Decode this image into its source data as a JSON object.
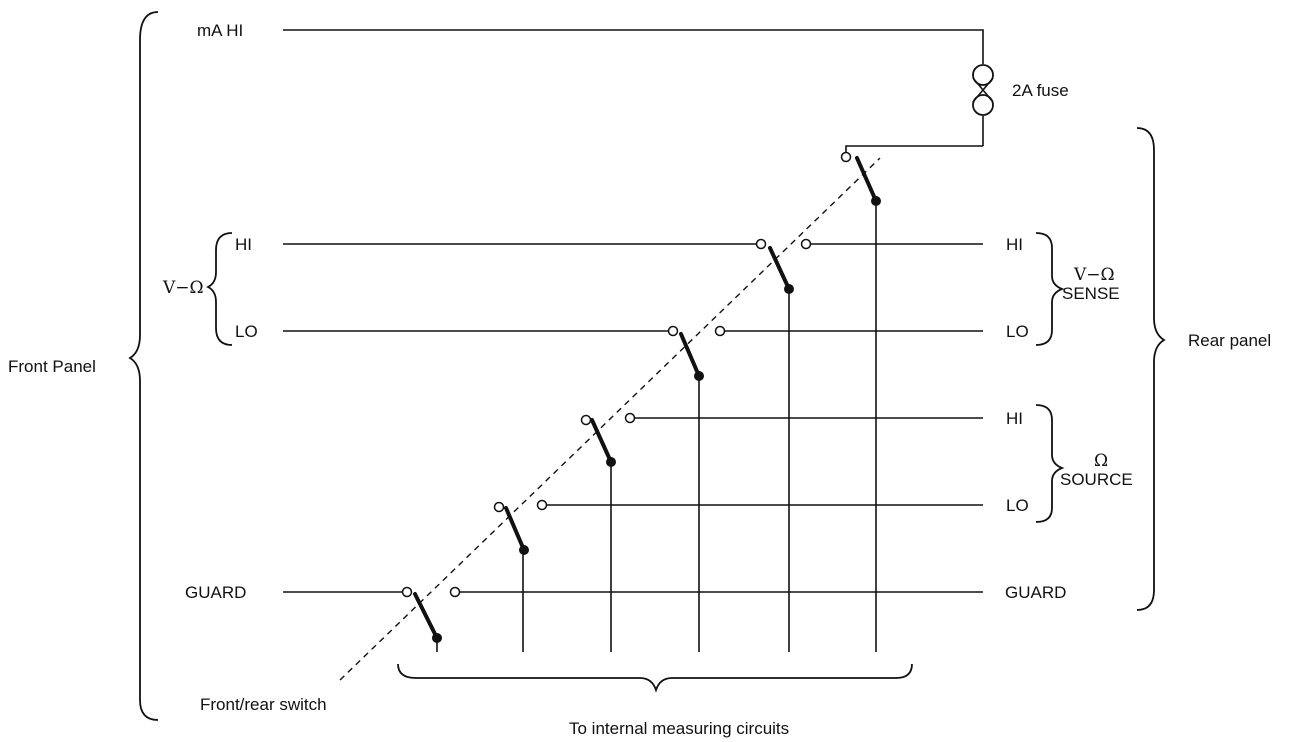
{
  "front": {
    "ma_hi": "mA HI",
    "v_ohm": "V−Ω",
    "hi": "HI",
    "lo": "LO",
    "guard": "GUARD",
    "panel": "Front Panel"
  },
  "rear": {
    "sense_hi": "HI",
    "sense_lo": "LO",
    "sense_v_ohm": "V−Ω",
    "sense_word": "SENSE",
    "source_hi": "HI",
    "source_lo": "LO",
    "source_ohm": "Ω",
    "source_word": "SOURCE",
    "guard": "GUARD",
    "panel": "Rear panel"
  },
  "fuse": "2A fuse",
  "switch": "Front/rear switch",
  "internal": "To internal measuring circuits"
}
